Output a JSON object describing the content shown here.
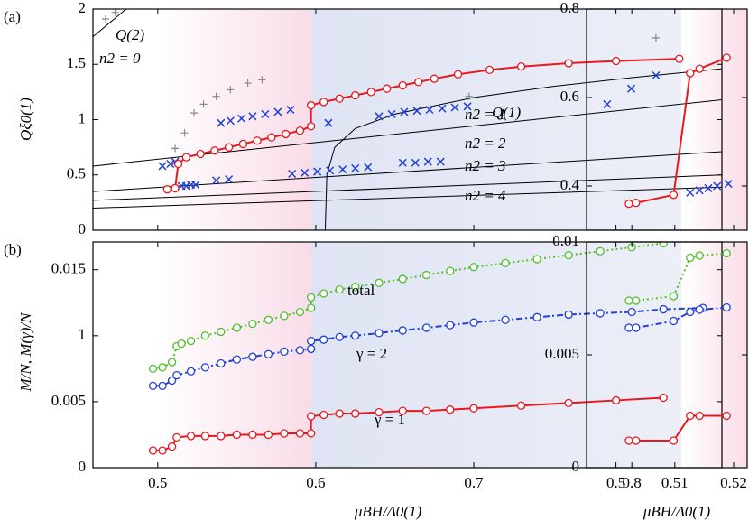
{
  "chart_data": [
    {
      "type": "line",
      "panel_label": "(a)",
      "ylabel": "Qξ0(1)",
      "xlim": [
        0.459,
        0.857
      ],
      "ylim": [
        0,
        2
      ],
      "xticks": [
        0.5,
        0.6,
        0.7,
        0.8
      ],
      "yticks": [
        0,
        0.5,
        1,
        1.5,
        2
      ],
      "annotations": [
        {
          "text": "Q(2)",
          "color": "#000000"
        },
        {
          "text": "n2 = 0",
          "color": "#000000"
        },
        {
          "text": "Q(1)",
          "color": "#000000"
        },
        {
          "text": "n2 = 1",
          "color": "#000000"
        },
        {
          "text": "n2 = 2",
          "color": "#000000"
        },
        {
          "text": "n2 = 3",
          "color": "#000000"
        },
        {
          "text": "n2 = 4",
          "color": "#000000"
        }
      ],
      "series": [
        {
          "color": "#000000",
          "marker": "none",
          "line": "solid",
          "x": [
            0.459,
            0.48
          ],
          "values": [
            1.75,
            2.0
          ]
        },
        {
          "color": "#000000",
          "marker": "none",
          "line": "solid",
          "x": [
            0.459,
            0.857
          ],
          "values": [
            0.58,
            1.18
          ]
        },
        {
          "color": "#000000",
          "marker": "none",
          "line": "solid",
          "x": [
            0.459,
            0.857
          ],
          "values": [
            0.35,
            0.71
          ]
        },
        {
          "color": "#000000",
          "marker": "none",
          "line": "solid",
          "x": [
            0.459,
            0.857
          ],
          "values": [
            0.27,
            0.5
          ]
        },
        {
          "color": "#000000",
          "marker": "none",
          "line": "solid",
          "x": [
            0.459,
            0.857
          ],
          "values": [
            0.2,
            0.39
          ]
        },
        {
          "color": "#000000",
          "marker": "none",
          "line": "solid",
          "x": [
            0.606,
            0.607,
            0.612,
            0.625,
            0.65,
            0.7,
            0.75,
            0.8,
            0.857
          ],
          "values": [
            0,
            0.5,
            0.75,
            0.92,
            1.05,
            1.2,
            1.3,
            1.38,
            1.46
          ]
        },
        {
          "color": "#888888",
          "marker": "plus",
          "line": "none",
          "x": [
            0.467,
            0.473,
            0.511,
            0.517,
            0.523,
            0.529,
            0.537,
            0.546,
            0.557,
            0.566,
            0.697
          ],
          "values": [
            1.91,
            1.97,
            0.74,
            0.88,
            1.06,
            1.14,
            1.21,
            1.27,
            1.33,
            1.36,
            1.21
          ]
        },
        {
          "color": "#1f3fd6",
          "marker": "cross",
          "line": "none",
          "x": [
            0.503,
            0.508,
            0.511,
            0.515,
            0.518,
            0.521,
            0.524,
            0.537,
            0.545,
            0.54,
            0.546,
            0.553,
            0.56,
            0.568,
            0.576,
            0.584,
            0.608,
            0.64,
            0.648,
            0.656,
            0.664,
            0.672,
            0.68,
            0.688,
            0.696,
            0.585,
            0.593,
            0.601,
            0.609,
            0.617,
            0.625,
            0.633,
            0.655,
            0.663,
            0.671,
            0.679
          ],
          "values": [
            0.58,
            0.6,
            0.62,
            0.4,
            0.4,
            0.41,
            0.41,
            0.45,
            0.46,
            0.97,
            0.99,
            1.01,
            1.03,
            1.05,
            1.07,
            1.09,
            0.97,
            1.03,
            1.05,
            1.07,
            1.08,
            1.09,
            1.1,
            1.11,
            1.12,
            0.51,
            0.52,
            0.53,
            0.54,
            0.55,
            0.56,
            0.57,
            0.61,
            0.61,
            0.62,
            0.62
          ]
        },
        {
          "color": "#e8191e",
          "marker": "circle",
          "line": "solid",
          "x": [
            0.506,
            0.511,
            0.513,
            0.518,
            0.527,
            0.536,
            0.545,
            0.554,
            0.563,
            0.572,
            0.581,
            0.59,
            0.597,
            0.597,
            0.605,
            0.615,
            0.625,
            0.635,
            0.645,
            0.655,
            0.665,
            0.675,
            0.69,
            0.71,
            0.73,
            0.76,
            0.79,
            0.83
          ],
          "values": [
            0.37,
            0.38,
            0.6,
            0.66,
            0.69,
            0.72,
            0.75,
            0.78,
            0.81,
            0.84,
            0.87,
            0.9,
            0.94,
            1.13,
            1.16,
            1.19,
            1.22,
            1.25,
            1.28,
            1.31,
            1.34,
            1.37,
            1.41,
            1.45,
            1.48,
            1.51,
            1.53,
            1.55
          ]
        }
      ]
    },
    {
      "type": "line",
      "xlim": [
        0.495,
        0.5223
      ],
      "ylim": [
        0.3,
        0.8
      ],
      "xticks": [
        0.5,
        0.51,
        0.52
      ],
      "yticks": [
        0.4,
        0.6,
        0.8
      ],
      "series": [
        {
          "color": "#888888",
          "marker": "plus",
          "line": "none",
          "x": [
            0.5068
          ],
          "values": [
            0.735
          ]
        },
        {
          "color": "#1f3fd6",
          "marker": "cross",
          "line": "none",
          "x": [
            0.4985,
            0.5026,
            0.5068,
            0.5126,
            0.5142,
            0.5157,
            0.5172,
            0.5191
          ],
          "values": [
            0.585,
            0.62,
            0.65,
            0.385,
            0.39,
            0.395,
            0.4,
            0.405
          ]
        },
        {
          "color": "#e8191e",
          "marker": "circle",
          "line": "solid",
          "x": [
            0.5022,
            0.5034,
            0.5098,
            0.5126,
            0.5142,
            0.5188
          ],
          "values": [
            0.36,
            0.362,
            0.38,
            0.655,
            0.665,
            0.69
          ]
        }
      ]
    },
    {
      "type": "line",
      "panel_label": "(b)",
      "ylabel": "M/N,  M(γ)/N",
      "xlabel": "μBH/Δ0(1)",
      "xlim": [
        0.459,
        0.857
      ],
      "ylim": [
        0,
        0.0171
      ],
      "xticks": [
        0.5,
        0.6,
        0.7,
        0.8
      ],
      "yticks": [
        0,
        0.005,
        {
          "value": 0.01,
          "label": "1"
        },
        0.015
      ],
      "series": [
        {
          "name": "total",
          "color": "#4fbf2a",
          "marker": "circle",
          "line": "dotted",
          "x": [
            0.497,
            0.503,
            0.509,
            0.512,
            0.515,
            0.521,
            0.53,
            0.54,
            0.55,
            0.56,
            0.57,
            0.58,
            0.59,
            0.597,
            0.597,
            0.605,
            0.615,
            0.625,
            0.64,
            0.655,
            0.67,
            0.685,
            0.7,
            0.72,
            0.74,
            0.76,
            0.78,
            0.8,
            0.82
          ],
          "values": [
            0.0075,
            0.0076,
            0.008,
            0.0092,
            0.0094,
            0.0096,
            0.01,
            0.0103,
            0.0106,
            0.0109,
            0.0112,
            0.0115,
            0.0118,
            0.0121,
            0.0129,
            0.0132,
            0.0135,
            0.0137,
            0.014,
            0.0143,
            0.0146,
            0.0149,
            0.0152,
            0.0155,
            0.0158,
            0.0161,
            0.0164,
            0.0167,
            0.017
          ]
        },
        {
          "name": "γ = 2",
          "color": "#1f3fd6",
          "marker": "circle",
          "line": "dashdot",
          "x": [
            0.497,
            0.503,
            0.509,
            0.512,
            0.521,
            0.53,
            0.54,
            0.55,
            0.56,
            0.57,
            0.58,
            0.59,
            0.597,
            0.597,
            0.605,
            0.615,
            0.625,
            0.64,
            0.655,
            0.67,
            0.685,
            0.7,
            0.72,
            0.74,
            0.76,
            0.78,
            0.8,
            0.82,
            0.845
          ],
          "values": [
            0.0062,
            0.0062,
            0.0066,
            0.007,
            0.0073,
            0.0076,
            0.0079,
            0.0082,
            0.0084,
            0.0086,
            0.0088,
            0.0089,
            0.009,
            0.0096,
            0.0097,
            0.0099,
            0.01,
            0.0102,
            0.0104,
            0.0106,
            0.0108,
            0.011,
            0.0112,
            0.0114,
            0.0116,
            0.0117,
            0.0118,
            0.012,
            0.0121
          ]
        },
        {
          "name": "γ = 1",
          "color": "#e8191e",
          "marker": "circle",
          "line": "solid",
          "x": [
            0.497,
            0.503,
            0.509,
            0.512,
            0.521,
            0.53,
            0.54,
            0.55,
            0.56,
            0.57,
            0.58,
            0.59,
            0.597,
            0.597,
            0.605,
            0.615,
            0.625,
            0.64,
            0.655,
            0.67,
            0.685,
            0.7,
            0.73,
            0.76,
            0.79,
            0.82
          ],
          "values": [
            0.0013,
            0.0013,
            0.0016,
            0.0023,
            0.0024,
            0.0024,
            0.0024,
            0.0025,
            0.0025,
            0.0025,
            0.0026,
            0.0026,
            0.0026,
            0.0039,
            0.004,
            0.0041,
            0.0041,
            0.0042,
            0.0043,
            0.0043,
            0.0044,
            0.0045,
            0.0047,
            0.0049,
            0.0051,
            0.0053
          ]
        }
      ]
    },
    {
      "type": "line",
      "xlabel": "μBH/Δ0(1)",
      "xlim": [
        0.495,
        0.5223
      ],
      "ylim": [
        0,
        0.01
      ],
      "xticks": [
        0.5,
        0.51,
        0.52
      ],
      "yticks": [
        0,
        0.005,
        0.01
      ],
      "series": [
        {
          "color": "#4fbf2a",
          "marker": "circle",
          "line": "dotted",
          "x": [
            0.5022,
            0.5034,
            0.5098,
            0.5126,
            0.5142,
            0.5188
          ],
          "values": [
            0.0074,
            0.0074,
            0.0076,
            0.0093,
            0.0094,
            0.0095
          ]
        },
        {
          "color": "#1f3fd6",
          "marker": "circle",
          "line": "dashdot",
          "x": [
            0.5022,
            0.5034,
            0.5098,
            0.5126,
            0.5142,
            0.5188
          ],
          "values": [
            0.0062,
            0.0062,
            0.0065,
            0.0069,
            0.007,
            0.0071
          ]
        },
        {
          "color": "#e8191e",
          "marker": "circle",
          "line": "solid",
          "x": [
            0.5022,
            0.5034,
            0.5098,
            0.5126,
            0.5142,
            0.5188
          ],
          "values": [
            0.0012,
            0.0012,
            0.0012,
            0.0023,
            0.0023,
            0.0023
          ]
        }
      ]
    }
  ]
}
